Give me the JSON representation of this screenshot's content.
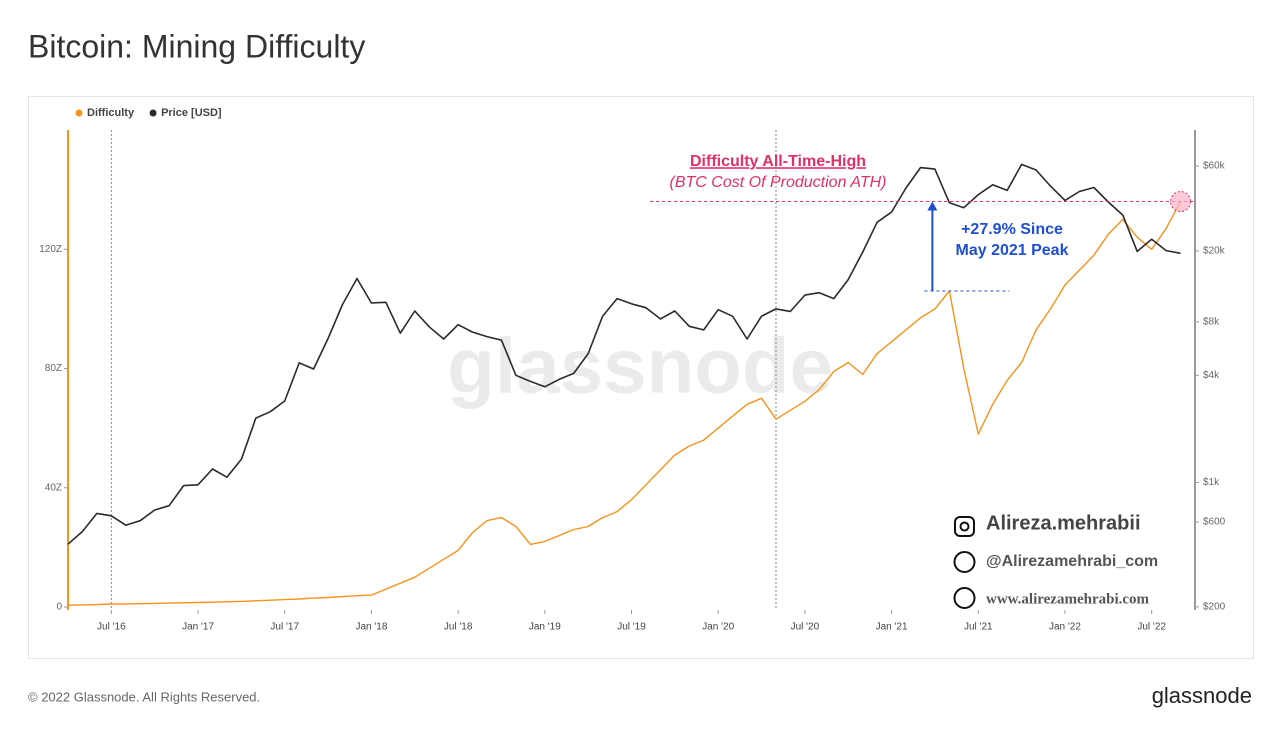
{
  "chart_data": {
    "type": "line",
    "title": "Bitcoin: Mining Difficulty",
    "x": [
      "2016-04",
      "2016-05",
      "2016-06",
      "2016-07",
      "2016-08",
      "2016-09",
      "2016-10",
      "2016-11",
      "2016-12",
      "2017-01",
      "2017-02",
      "2017-03",
      "2017-04",
      "2017-05",
      "2017-06",
      "2017-07",
      "2017-08",
      "2017-09",
      "2017-10",
      "2017-11",
      "2017-12",
      "2018-01",
      "2018-02",
      "2018-03",
      "2018-04",
      "2018-05",
      "2018-06",
      "2018-07",
      "2018-08",
      "2018-09",
      "2018-10",
      "2018-11",
      "2018-12",
      "2019-01",
      "2019-02",
      "2019-03",
      "2019-04",
      "2019-05",
      "2019-06",
      "2019-07",
      "2019-08",
      "2019-09",
      "2019-10",
      "2019-11",
      "2019-12",
      "2020-01",
      "2020-02",
      "2020-03",
      "2020-04",
      "2020-05",
      "2020-06",
      "2020-07",
      "2020-08",
      "2020-09",
      "2020-10",
      "2020-11",
      "2020-12",
      "2021-01",
      "2021-02",
      "2021-03",
      "2021-04",
      "2021-05",
      "2021-06",
      "2021-07",
      "2021-08",
      "2021-09",
      "2021-10",
      "2021-11",
      "2021-12",
      "2022-01",
      "2022-02",
      "2022-03",
      "2022-04",
      "2022-05",
      "2022-06",
      "2022-07",
      "2022-08",
      "2022-09"
    ],
    "series": [
      {
        "name": "Difficulty",
        "color": "#f7931a",
        "axis": "y",
        "values": [
          0.6,
          0.7,
          0.8,
          1,
          1,
          1.1,
          1.2,
          1.3,
          1.4,
          1.5,
          1.6,
          1.8,
          1.9,
          2.1,
          2.3,
          2.5,
          2.7,
          3,
          3.2,
          3.5,
          3.8,
          4,
          6,
          8,
          10,
          13,
          16,
          19,
          25,
          29,
          30,
          27,
          21,
          22,
          24,
          26,
          27,
          30,
          32,
          36,
          41,
          46,
          51,
          54,
          56,
          60,
          64,
          68,
          70,
          63,
          66,
          69,
          73,
          79,
          82,
          78,
          85,
          89,
          93,
          97,
          100,
          106,
          80,
          58,
          68,
          76,
          82,
          93,
          100,
          108,
          113,
          118,
          125,
          130,
          124,
          120,
          127,
          136
        ]
      },
      {
        "name": "Price [USD]",
        "color": "#2b2b2b",
        "axis": "y2",
        "values": [
          450,
          530,
          670,
          650,
          575,
          610,
          700,
          740,
          960,
          970,
          1190,
          1070,
          1350,
          2300,
          2500,
          2870,
          4700,
          4340,
          6450,
          10000,
          14000,
          10200,
          10300,
          6900,
          9200,
          7500,
          6400,
          7700,
          7000,
          6600,
          6300,
          4000,
          3700,
          3450,
          3800,
          4100,
          5300,
          8600,
          10800,
          10100,
          9600,
          8300,
          9200,
          7550,
          7200,
          9350,
          8600,
          6400,
          8600,
          9450,
          9150,
          11300,
          11650,
          10800,
          13800,
          19700,
          29000,
          33100,
          45200,
          58800,
          57700,
          37300,
          35000,
          41500,
          47100,
          43800,
          61300,
          57000,
          46300,
          38500,
          43200,
          45500,
          37700,
          31800,
          19900,
          23300,
          20100,
          19400
        ]
      }
    ],
    "xlim": [
      "2016-04",
      "2022-10"
    ],
    "xticks": [
      {
        "value": "2016-07",
        "label": "Jul '16"
      },
      {
        "value": "2017-01",
        "label": "Jan '17"
      },
      {
        "value": "2017-07",
        "label": "Jul '17"
      },
      {
        "value": "2018-01",
        "label": "Jan '18"
      },
      {
        "value": "2018-07",
        "label": "Jul '18"
      },
      {
        "value": "2019-01",
        "label": "Jan '19"
      },
      {
        "value": "2019-07",
        "label": "Jul '19"
      },
      {
        "value": "2020-01",
        "label": "Jan '20"
      },
      {
        "value": "2020-07",
        "label": "Jul '20"
      },
      {
        "value": "2021-01",
        "label": "Jan '21"
      },
      {
        "value": "2021-07",
        "label": "Jul '21"
      },
      {
        "value": "2022-01",
        "label": "Jan '22"
      },
      {
        "value": "2022-07",
        "label": "Jul '22"
      }
    ],
    "ylim": [
      -1,
      160
    ],
    "yticks": [
      0,
      {
        "value": 40,
        "label": "40Z"
      },
      {
        "value": 80,
        "label": "80Z"
      },
      {
        "value": 120,
        "label": "120Z"
      }
    ],
    "y2lim": [
      192,
      95700
    ],
    "y2scale": "log",
    "y2ticks": [
      {
        "value": 200,
        "label": "$200"
      },
      {
        "value": 600,
        "label": "$600"
      },
      {
        "value": 1000,
        "label": "$1k"
      },
      {
        "value": 4000,
        "label": "$4k"
      },
      {
        "value": 8000,
        "label": "$8k"
      },
      {
        "value": 20000,
        "label": "$20k"
      },
      {
        "value": 60000,
        "label": "$60k"
      }
    ],
    "vlines": [
      "2016-07",
      "2020-05"
    ],
    "annotations": {
      "ath_title": "Difficulty All-Time-High",
      "ath_subtitle": "(BTC Cost Of Production ATH)",
      "change_line1": "+27.9% Since",
      "change_line2": "May 2021 Peak"
    },
    "watermark": "glassnode",
    "credits": [
      "Alireza.mehrabii",
      "@Alirezamehrabi_com",
      "www.alirezamehrabi.com"
    ],
    "footer": "© 2022 Glassnode. All Rights Reserved.",
    "logo": "glassnode"
  }
}
